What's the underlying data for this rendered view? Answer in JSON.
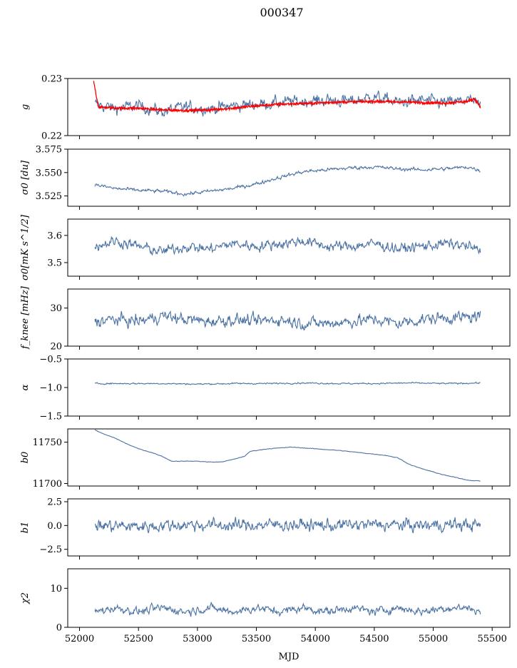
{
  "title": "000347",
  "colors": {
    "series": "#4c72a4",
    "overlay": "#ff0000",
    "axis": "#000000"
  },
  "chart_data": [
    {
      "type": "line",
      "ylabel": "g",
      "ylim": [
        0.22,
        0.23
      ],
      "yticks": [
        0.22,
        0.23
      ],
      "yticklabels": [
        "0.22",
        "0.23"
      ],
      "series": [
        {
          "name": "g",
          "color": "#4c72a4",
          "x": [
            52130,
            52300,
            52500,
            52700,
            52900,
            53100,
            53300,
            53500,
            53700,
            53900,
            54100,
            54300,
            54500,
            54700,
            54900,
            55100,
            55300,
            55400
          ],
          "values": [
            0.2255,
            0.2248,
            0.2252,
            0.2242,
            0.225,
            0.2247,
            0.2252,
            0.2255,
            0.2258,
            0.226,
            0.2262,
            0.226,
            0.2268,
            0.2258,
            0.2262,
            0.2257,
            0.2262,
            0.2252
          ]
        },
        {
          "name": "g fit",
          "color": "#ff0000",
          "x": [
            52120,
            52160,
            52300,
            52500,
            52700,
            52900,
            53100,
            53300,
            53500,
            53700,
            53900,
            54100,
            54300,
            54500,
            54700,
            54900,
            55100,
            55300,
            55350,
            55400
          ],
          "values": [
            0.2295,
            0.225,
            0.2248,
            0.2248,
            0.2245,
            0.2244,
            0.2245,
            0.2248,
            0.2252,
            0.2255,
            0.2256,
            0.2258,
            0.2259,
            0.226,
            0.2259,
            0.2258,
            0.2257,
            0.226,
            0.2265,
            0.225
          ]
        }
      ]
    },
    {
      "type": "line",
      "ylabel": "σ0 [du]",
      "ylim": [
        3.514,
        3.575
      ],
      "yticks": [
        3.525,
        3.55,
        3.575
      ],
      "yticklabels": [
        "3.525",
        "3.550",
        "3.575"
      ],
      "series": [
        {
          "name": "sigma0_du",
          "color": "#4c72a4",
          "x": [
            52130,
            52300,
            52500,
            52700,
            52900,
            53100,
            53300,
            53500,
            53700,
            53900,
            54100,
            54300,
            54500,
            54700,
            54900,
            55100,
            55300,
            55400
          ],
          "values": [
            3.537,
            3.533,
            3.531,
            3.53,
            3.527,
            3.53,
            3.533,
            3.538,
            3.545,
            3.551,
            3.553,
            3.555,
            3.556,
            3.554,
            3.553,
            3.554,
            3.556,
            3.552
          ]
        }
      ]
    },
    {
      "type": "line",
      "ylabel": "σ0[mK s^1/2]",
      "ylim": [
        3.45,
        3.66
      ],
      "yticks": [
        3.5,
        3.6
      ],
      "yticklabels": [
        "3.5",
        "3.6"
      ],
      "series": [
        {
          "name": "sigma0_mK",
          "color": "#4c72a4",
          "x": [
            52130,
            52300,
            52500,
            52700,
            52900,
            53100,
            53300,
            53500,
            53700,
            53900,
            54100,
            54300,
            54500,
            54700,
            54900,
            55100,
            55300,
            55400
          ],
          "values": [
            3.56,
            3.58,
            3.56,
            3.54,
            3.56,
            3.55,
            3.57,
            3.56,
            3.57,
            3.58,
            3.56,
            3.56,
            3.57,
            3.55,
            3.56,
            3.57,
            3.56,
            3.54
          ]
        }
      ]
    },
    {
      "type": "line",
      "ylabel": "f_knee [mHz]",
      "ylim": [
        20,
        35
      ],
      "yticks": [
        20,
        30
      ],
      "yticklabels": [
        "20",
        "30"
      ],
      "series": [
        {
          "name": "fknee",
          "color": "#4c72a4",
          "x": [
            52130,
            52300,
            52500,
            52700,
            52900,
            53100,
            53300,
            53500,
            53700,
            53900,
            54100,
            54300,
            54500,
            54700,
            54900,
            55100,
            55300,
            55400
          ],
          "values": [
            26.5,
            27,
            26.5,
            28,
            27,
            26.5,
            27,
            26.5,
            27,
            26,
            26,
            26.5,
            27,
            26,
            27,
            27.5,
            27.5,
            28
          ]
        }
      ]
    },
    {
      "type": "line",
      "ylabel": "α",
      "ylim": [
        -1.5,
        -0.5
      ],
      "yticks": [
        -1.5,
        -1.0,
        -0.5
      ],
      "yticklabels": [
        "−1.5",
        "−1.0",
        "−0.5"
      ],
      "series": [
        {
          "name": "alpha",
          "color": "#4c72a4",
          "x": [
            52130,
            52400,
            52700,
            53000,
            53300,
            53600,
            53900,
            54200,
            54500,
            54800,
            55100,
            55400
          ],
          "values": [
            -0.93,
            -0.93,
            -0.93,
            -0.94,
            -0.93,
            -0.93,
            -0.92,
            -0.93,
            -0.93,
            -0.92,
            -0.93,
            -0.92
          ]
        }
      ]
    },
    {
      "type": "line",
      "ylabel": "b0",
      "ylim": [
        11697,
        11766
      ],
      "yticks": [
        11700,
        11750
      ],
      "yticklabels": [
        "11700",
        "11750"
      ],
      "series": [
        {
          "name": "b0",
          "color": "#4c72a4",
          "x": [
            52130,
            52200,
            52300,
            52400,
            52500,
            52600,
            52700,
            52780,
            52900,
            53000,
            53100,
            53200,
            53300,
            53400,
            53450,
            53600,
            53800,
            54000,
            54200,
            54400,
            54600,
            54700,
            54800,
            54900,
            55000,
            55100,
            55200,
            55300,
            55400
          ],
          "values": [
            11765,
            11760,
            11755,
            11748,
            11742,
            11738,
            11733,
            11727,
            11727,
            11727,
            11726,
            11726,
            11729,
            11733,
            11739,
            11742,
            11744,
            11742,
            11740,
            11737,
            11734,
            11731,
            11723,
            11718,
            11714,
            11710,
            11707,
            11704,
            11703
          ]
        }
      ]
    },
    {
      "type": "line",
      "ylabel": "b1",
      "ylim": [
        -3.2,
        2.8
      ],
      "yticks": [
        -2.5,
        0.0,
        2.5
      ],
      "yticklabels": [
        "−2.5",
        "0.0",
        "2.5"
      ],
      "series": [
        {
          "name": "b1",
          "color": "#4c72a4",
          "x": [
            52130,
            52500,
            52900,
            53300,
            53700,
            54100,
            54500,
            54900,
            55300,
            55400
          ],
          "values": [
            0.0,
            -0.1,
            0.1,
            0.0,
            0.1,
            0.0,
            0.1,
            0.0,
            0.1,
            0.0
          ]
        }
      ]
    },
    {
      "type": "line",
      "ylabel": "χ2",
      "ylim": [
        0,
        15
      ],
      "yticks": [
        0,
        10
      ],
      "yticklabels": [
        "0",
        "10"
      ],
      "series": [
        {
          "name": "chi2",
          "color": "#4c72a4",
          "x": [
            52130,
            52300,
            52500,
            52700,
            52900,
            53100,
            53300,
            53500,
            53700,
            53900,
            54100,
            54300,
            54500,
            54700,
            54900,
            55100,
            55300,
            55400
          ],
          "values": [
            4,
            5,
            4,
            5,
            4,
            5,
            4,
            5,
            4,
            5,
            4,
            5,
            4,
            5,
            4,
            5,
            5,
            4
          ]
        }
      ]
    }
  ],
  "xaxis": {
    "label": "MJD",
    "xlim": [
      51900,
      55650
    ],
    "ticks": [
      52000,
      52500,
      53000,
      53500,
      54000,
      54500,
      55000,
      55500
    ],
    "ticklabels": [
      "52000",
      "52500",
      "53000",
      "53500",
      "54000",
      "54500",
      "55000",
      "55500"
    ]
  }
}
